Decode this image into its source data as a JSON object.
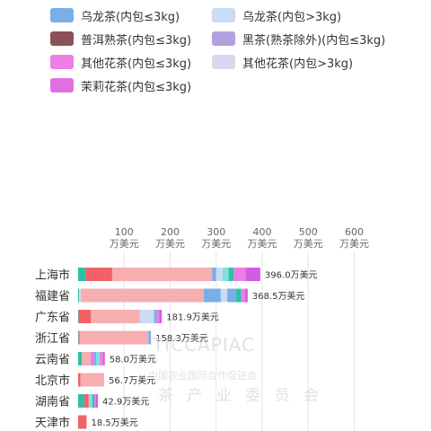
{
  "colors": {
    "乌龙茶(内包≤3kg)": "#7aaee6",
    "乌龙茶(内包>3kg)": "#c8dcf5",
    "普洱熟茶(内包≤3kg)": "#8c5058",
    "黑茶(熟茶除外)(内包≤3kg)": "#b3a0e0",
    "其他花茶(内包≤3kg)": "#ec7ee6",
    "其他花茶(内包>3kg)": "#ddd6ee",
    "茉莉花茶(内包≤3kg)": "#e070e0",
    "extra_teal": "#2ec0a4",
    "extra_red": "#f06266",
    "extra_pink": "#f7aeb0",
    "extra_cyan": "#7de2dc",
    "extra_magenta": "#d45ce0"
  },
  "watermark": {
    "logo": "TICCAPIAC",
    "cn": "中国农业国际合作促进会",
    "cn2": "茶 产 业 委 员 会"
  },
  "chart_data": {
    "type": "bar",
    "orientation": "horizontal",
    "stacked": true,
    "legend": [
      "乌龙茶(内包≤3kg)",
      "乌龙茶(内包>3kg)",
      "普洱熟茶(内包≤3kg)",
      "黑茶(熟茶除外)(内包≤3kg)",
      "其他花茶(内包≤3kg)",
      "其他花茶(内包>3kg)",
      "茉莉花茶(内包≤3kg)"
    ],
    "legend_position": "top",
    "xlim": [
      0,
      600
    ],
    "xticks": [
      100,
      200,
      300,
      400,
      500,
      600
    ],
    "tick_unit": "万美元",
    "grid": true,
    "categories": [
      "上海市",
      "福建省",
      "广东省",
      "浙江省",
      "云南省",
      "北京市",
      "湖南省",
      "天津市"
    ],
    "totals": [
      396.0,
      368.5,
      181.9,
      158.3,
      58.0,
      56.7,
      42.9,
      18.5
    ],
    "total_labels": [
      "396.0万美元",
      "368.5万美元",
      "181.9万美元",
      "158.3万美元",
      "58.0万美元",
      "56.7万美元",
      "42.9万美元",
      "18.5万美元"
    ],
    "segments": [
      [
        [
          "extra_teal",
          16
        ],
        [
          "extra_red",
          58
        ],
        [
          "extra_pink",
          217
        ],
        [
          "乌龙茶(内包≤3kg)",
          9
        ],
        [
          "乌龙茶(内包>3kg)",
          14
        ],
        [
          "extra_cyan",
          13
        ],
        [
          "extra_teal",
          11
        ],
        [
          "其他花茶(内包≤3kg)",
          26
        ],
        [
          "extra_magenta",
          32
        ]
      ],
      [
        [
          "extra_teal",
          2
        ],
        [
          "乌龙茶(内包>3kg)",
          4
        ],
        [
          "extra_pink",
          267
        ],
        [
          "乌龙茶(内包≤3kg)",
          37
        ],
        [
          "乌龙茶(内包>3kg)",
          14
        ],
        [
          "乌龙茶(内包≤3kg)",
          19
        ],
        [
          "extra_teal",
          11.5
        ],
        [
          "其他花茶(内包≤3kg)",
          8
        ],
        [
          "extra_magenta",
          6
        ]
      ],
      [
        [
          "extra_teal",
          1
        ],
        [
          "extra_red",
          27
        ],
        [
          "extra_pink",
          106
        ],
        [
          "乌龙茶(内包>3kg)",
          31
        ],
        [
          "乌龙茶(内包≤3kg)",
          6
        ],
        [
          "其他花茶(内包≤3kg)",
          5
        ],
        [
          "extra_magenta",
          5.9
        ]
      ],
      [
        [
          "extra_teal",
          1
        ],
        [
          "extra_red",
          2
        ],
        [
          "extra_pink",
          150
        ],
        [
          "乌龙茶(内包≤3kg)",
          5.3
        ]
      ],
      [
        [
          "extra_teal",
          8
        ],
        [
          "extra_pink",
          19
        ],
        [
          "其他花茶(内包≤3kg)",
          8
        ],
        [
          "乌龙茶(内包≤3kg)",
          4
        ],
        [
          "extra_cyan",
          8
        ],
        [
          "其他花茶(内包≤3kg)",
          7
        ],
        [
          "extra_magenta",
          4
        ]
      ],
      [
        [
          "extra_red",
          5
        ],
        [
          "extra_pink",
          51.7
        ]
      ],
      [
        [
          "extra_teal",
          13
        ],
        [
          "extra_red",
          10
        ],
        [
          "extra_cyan",
          8
        ],
        [
          "extra_teal",
          4
        ],
        [
          "其他花茶(内包≤3kg)",
          4
        ],
        [
          "extra_magenta",
          3.9
        ]
      ],
      [
        [
          "extra_red",
          18.5
        ]
      ]
    ]
  }
}
